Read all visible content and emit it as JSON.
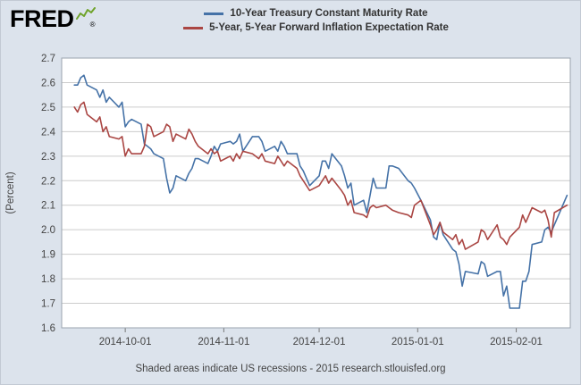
{
  "logo": {
    "text": "FRED",
    "registered": "®"
  },
  "legend": [
    {
      "label": "10-Year Treasury Constant Maturity Rate",
      "color": "#4572a7"
    },
    {
      "label": "5-Year, 5-Year Forward Inflation Expectation Rate",
      "color": "#aa4643"
    }
  ],
  "footer": "Shaded areas indicate US recessions - 2015 research.stlouisfed.org",
  "chart_data": {
    "type": "line",
    "title": "",
    "xlabel": "",
    "ylabel": "(Percent)",
    "ylim": [
      1.6,
      2.7
    ],
    "ytick_step": 0.1,
    "xlim": [
      "2014-09-11",
      "2015-02-18"
    ],
    "xticks": [
      "2014-10-01",
      "2014-11-01",
      "2014-12-01",
      "2015-01-01",
      "2015-02-01"
    ],
    "grid": true,
    "legend_position": "top",
    "colors": {
      "plot_bg": "#ffffff",
      "grid": "#cccccc",
      "border": "#9aa3ae",
      "axis": "#777777",
      "background": "#dce3ec"
    },
    "x": [
      "2014-09-15",
      "2014-09-16",
      "2014-09-17",
      "2014-09-18",
      "2014-09-19",
      "2014-09-22",
      "2014-09-23",
      "2014-09-24",
      "2014-09-25",
      "2014-09-26",
      "2014-09-29",
      "2014-09-30",
      "2014-10-01",
      "2014-10-02",
      "2014-10-03",
      "2014-10-06",
      "2014-10-07",
      "2014-10-08",
      "2014-10-09",
      "2014-10-10",
      "2014-10-13",
      "2014-10-14",
      "2014-10-15",
      "2014-10-16",
      "2014-10-17",
      "2014-10-20",
      "2014-10-21",
      "2014-10-22",
      "2014-10-23",
      "2014-10-24",
      "2014-10-27",
      "2014-10-28",
      "2014-10-29",
      "2014-10-30",
      "2014-10-31",
      "2014-11-03",
      "2014-11-04",
      "2014-11-05",
      "2014-11-06",
      "2014-11-07",
      "2014-11-10",
      "2014-11-11",
      "2014-11-12",
      "2014-11-13",
      "2014-11-14",
      "2014-11-17",
      "2014-11-18",
      "2014-11-19",
      "2014-11-20",
      "2014-11-21",
      "2014-11-24",
      "2014-11-25",
      "2014-11-26",
      "2014-11-28",
      "2014-12-01",
      "2014-12-02",
      "2014-12-03",
      "2014-12-04",
      "2014-12-05",
      "2014-12-08",
      "2014-12-09",
      "2014-12-10",
      "2014-12-11",
      "2014-12-12",
      "2014-12-15",
      "2014-12-16",
      "2014-12-17",
      "2014-12-18",
      "2014-12-19",
      "2014-12-22",
      "2014-12-23",
      "2014-12-24",
      "2014-12-26",
      "2014-12-29",
      "2014-12-30",
      "2014-12-31",
      "2015-01-02",
      "2015-01-05",
      "2015-01-06",
      "2015-01-07",
      "2015-01-08",
      "2015-01-09",
      "2015-01-12",
      "2015-01-13",
      "2015-01-14",
      "2015-01-15",
      "2015-01-16",
      "2015-01-20",
      "2015-01-21",
      "2015-01-22",
      "2015-01-23",
      "2015-01-26",
      "2015-01-27",
      "2015-01-28",
      "2015-01-29",
      "2015-01-30",
      "2015-02-02",
      "2015-02-03",
      "2015-02-04",
      "2015-02-05",
      "2015-02-06",
      "2015-02-09",
      "2015-02-10",
      "2015-02-11",
      "2015-02-12",
      "2015-02-13",
      "2015-02-17"
    ],
    "series": [
      {
        "name": "10-Year Treasury Constant Maturity Rate",
        "color": "#4572a7",
        "values": [
          2.59,
          2.59,
          2.62,
          2.63,
          2.59,
          2.57,
          2.54,
          2.57,
          2.52,
          2.54,
          2.5,
          2.52,
          2.42,
          2.44,
          2.45,
          2.43,
          2.35,
          2.34,
          2.33,
          2.31,
          2.29,
          2.21,
          2.15,
          2.17,
          2.22,
          2.2,
          2.23,
          2.25,
          2.29,
          2.29,
          2.27,
          2.3,
          2.34,
          2.32,
          2.35,
          2.36,
          2.35,
          2.36,
          2.39,
          2.32,
          2.38,
          2.38,
          2.38,
          2.36,
          2.32,
          2.34,
          2.32,
          2.36,
          2.34,
          2.31,
          2.31,
          2.26,
          2.24,
          2.18,
          2.22,
          2.28,
          2.28,
          2.25,
          2.31,
          2.26,
          2.22,
          2.17,
          2.19,
          2.1,
          2.12,
          2.07,
          2.14,
          2.21,
          2.17,
          2.17,
          2.26,
          2.26,
          2.25,
          2.2,
          2.19,
          2.17,
          2.12,
          2.04,
          1.97,
          1.96,
          2.03,
          1.98,
          1.92,
          1.91,
          1.86,
          1.77,
          1.83,
          1.82,
          1.87,
          1.86,
          1.81,
          1.83,
          1.83,
          1.73,
          1.77,
          1.68,
          1.68,
          1.79,
          1.79,
          1.83,
          1.94,
          1.95,
          2.0,
          2.01,
          1.99,
          2.02,
          2.14
        ]
      },
      {
        "name": "5-Year, 5-Year Forward Inflation Expectation Rate",
        "color": "#aa4643",
        "values": [
          2.5,
          2.48,
          2.51,
          2.52,
          2.47,
          2.44,
          2.46,
          2.4,
          2.42,
          2.38,
          2.37,
          2.38,
          2.3,
          2.33,
          2.31,
          2.31,
          2.34,
          2.43,
          2.42,
          2.38,
          2.4,
          2.43,
          2.42,
          2.36,
          2.39,
          2.37,
          2.41,
          2.39,
          2.36,
          2.34,
          2.31,
          2.33,
          2.31,
          2.32,
          2.28,
          2.3,
          2.28,
          2.31,
          2.29,
          2.32,
          2.31,
          2.3,
          2.29,
          2.31,
          2.28,
          2.27,
          2.3,
          2.28,
          2.26,
          2.28,
          2.25,
          2.22,
          2.2,
          2.16,
          2.18,
          2.2,
          2.22,
          2.19,
          2.21,
          2.16,
          2.14,
          2.1,
          2.12,
          2.07,
          2.06,
          2.05,
          2.09,
          2.1,
          2.09,
          2.1,
          2.09,
          2.08,
          2.07,
          2.06,
          2.05,
          2.1,
          2.12,
          2.02,
          1.98,
          2.0,
          2.03,
          1.99,
          1.96,
          1.98,
          1.94,
          1.96,
          1.92,
          1.95,
          2.0,
          1.99,
          1.96,
          2.02,
          1.97,
          1.96,
          1.94,
          1.97,
          2.01,
          2.06,
          2.03,
          2.06,
          2.09,
          2.07,
          2.08,
          2.04,
          1.97,
          2.07,
          2.1
        ]
      }
    ]
  }
}
